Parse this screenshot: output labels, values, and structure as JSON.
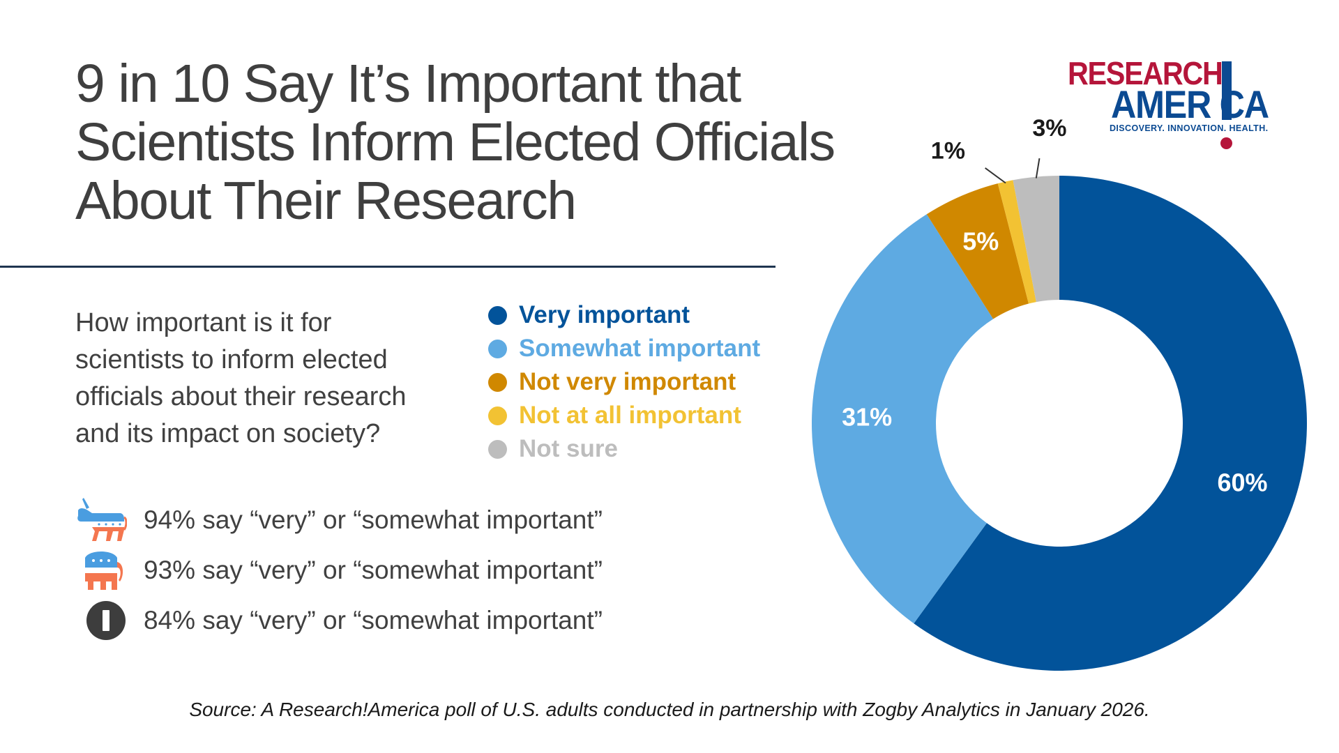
{
  "title_lines": [
    "9 in 10 Say It’s Important that",
    "Scientists Inform Elected Officials",
    "About Their Research"
  ],
  "question_lines": [
    "How important is it for",
    "scientists to inform elected",
    "officials about their research",
    "and its impact on society?"
  ],
  "party_results": [
    {
      "icon": "democrat-donkey-icon",
      "text": "94% say “very” or “somewhat important”"
    },
    {
      "icon": "republican-elephant-icon",
      "text": "93% say “very” or “somewhat important”"
    },
    {
      "icon": "independent-i-icon",
      "text": "84% say “very” or “somewhat important”"
    }
  ],
  "logo": {
    "line1": "RESEARCH",
    "line2": "AMER  CA",
    "tagline": "DISCOVERY. INNOVATION. HEALTH."
  },
  "source": "Source: A Research!America poll of U.S. adults conducted in partnership with Zogby Analytics in January 2026.",
  "colors": {
    "very": "#02539a",
    "somewhat": "#5eaae2",
    "not_very": "#d08800",
    "not_at_all": "#f2c233",
    "not_sure": "#bdbdbd",
    "logo_red": "#b5153a",
    "logo_blue": "#0b4a92"
  },
  "chart_data": {
    "type": "pie",
    "donut": true,
    "title": "",
    "legend_position": "left",
    "series": [
      {
        "name": "Very important",
        "value": 60,
        "label": "60%",
        "color": "#02539a"
      },
      {
        "name": "Somewhat important",
        "value": 31,
        "label": "31%",
        "color": "#5eaae2"
      },
      {
        "name": "Not very important",
        "value": 5,
        "label": "5%",
        "color": "#d08800"
      },
      {
        "name": "Not at all important",
        "value": 1,
        "label": "1%",
        "color": "#f2c233"
      },
      {
        "name": "Not sure",
        "value": 3,
        "label": "3%",
        "color": "#bdbdbd"
      }
    ]
  }
}
